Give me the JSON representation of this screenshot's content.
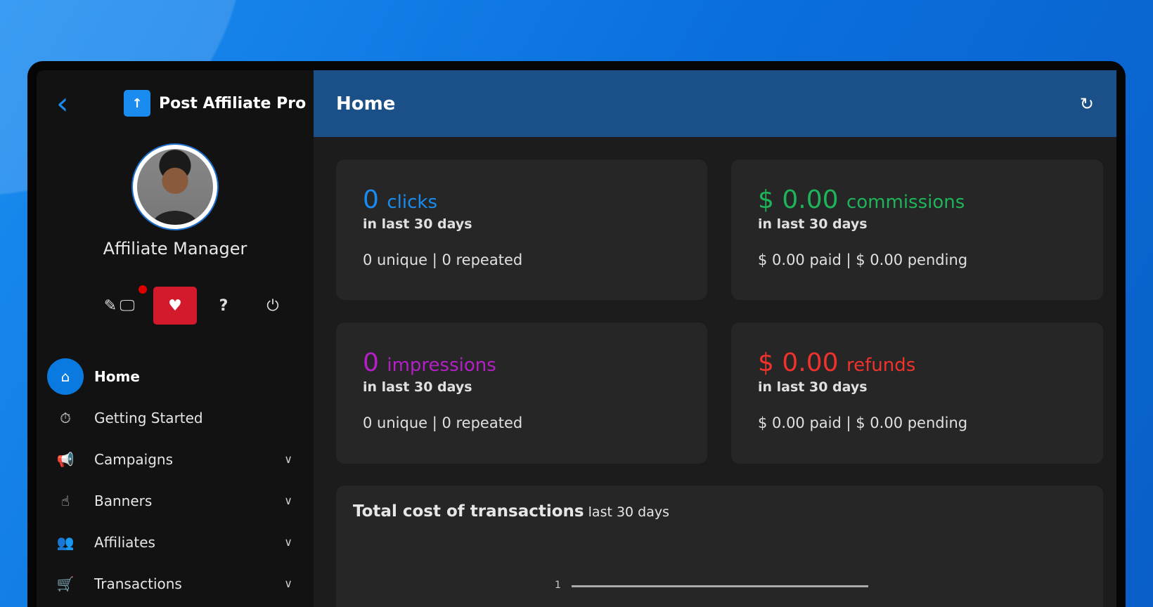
{
  "sidebar": {
    "brand": "Post Affiliate Pro",
    "role": "Affiliate Manager",
    "tools": [
      "pencil-icon",
      "monitor-icon",
      "heartbeat-icon",
      "question-icon",
      "power-icon"
    ],
    "items": [
      {
        "label": "Home",
        "icon": "home-icon",
        "active": true
      },
      {
        "label": "Getting Started",
        "icon": "stopwatch-icon"
      },
      {
        "label": "Campaigns",
        "icon": "megaphone-icon",
        "expandable": true
      },
      {
        "label": "Banners",
        "icon": "hand-pointer-icon",
        "expandable": true
      },
      {
        "label": "Affiliates",
        "icon": "users-icon",
        "expandable": true
      },
      {
        "label": "Transactions",
        "icon": "basket-icon",
        "expandable": true
      }
    ]
  },
  "header": {
    "title": "Home"
  },
  "cards": [
    {
      "value": "0",
      "unit": "clicks",
      "period": "in last 30 days",
      "detail": "0 unique | 0 repeated",
      "color": "#1a8cf0"
    },
    {
      "value": "$ 0.00",
      "unit": "commissions",
      "period": "in last 30 days",
      "detail": "$ 0.00 paid | $ 0.00 pending",
      "color": "#1fb35a"
    },
    {
      "value": "0",
      "unit": "impressions",
      "period": "in last 30 days",
      "detail": "0 unique | 0 repeated",
      "color": "#b51fc8"
    },
    {
      "value": "$ 0.00",
      "unit": "refunds",
      "period": "in last 30 days",
      "detail": "$ 0.00 paid | $ 0.00 pending",
      "color": "#f0322c"
    }
  ],
  "chart": {
    "title": "Total cost of transactions",
    "subtitle": "last 30 days",
    "tick": "1"
  }
}
